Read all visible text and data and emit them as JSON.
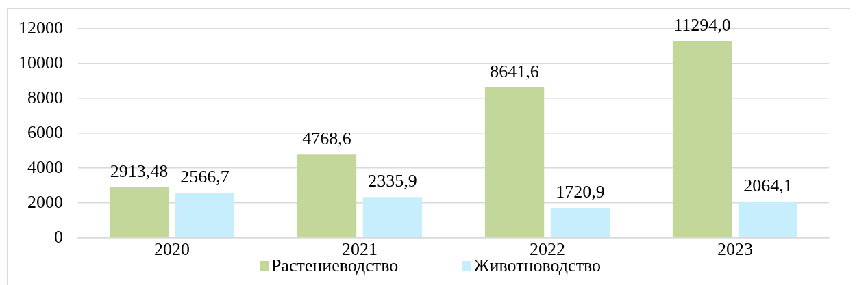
{
  "chart_data": {
    "type": "bar",
    "categories": [
      "2020",
      "2021",
      "2022",
      "2023"
    ],
    "series": [
      {
        "name": "Растениеводство",
        "color": "#c4d79b",
        "values": [
          2913.48,
          4768.6,
          8641.6,
          11294.0
        ],
        "value_labels": [
          "2913,48",
          "4768,6",
          "8641,6",
          "11294,0"
        ]
      },
      {
        "name": "Животноводство",
        "color": "#c6eefc",
        "values": [
          2566.7,
          2335.9,
          1720.9,
          2064.1
        ],
        "value_labels": [
          "2566,7",
          "2335,9",
          "1720,9",
          "2064,1"
        ]
      }
    ],
    "ylim": [
      0,
      12000
    ],
    "yticks": [
      0,
      2000,
      4000,
      6000,
      8000,
      10000,
      12000
    ],
    "grid": "y",
    "legend": "bottom"
  }
}
